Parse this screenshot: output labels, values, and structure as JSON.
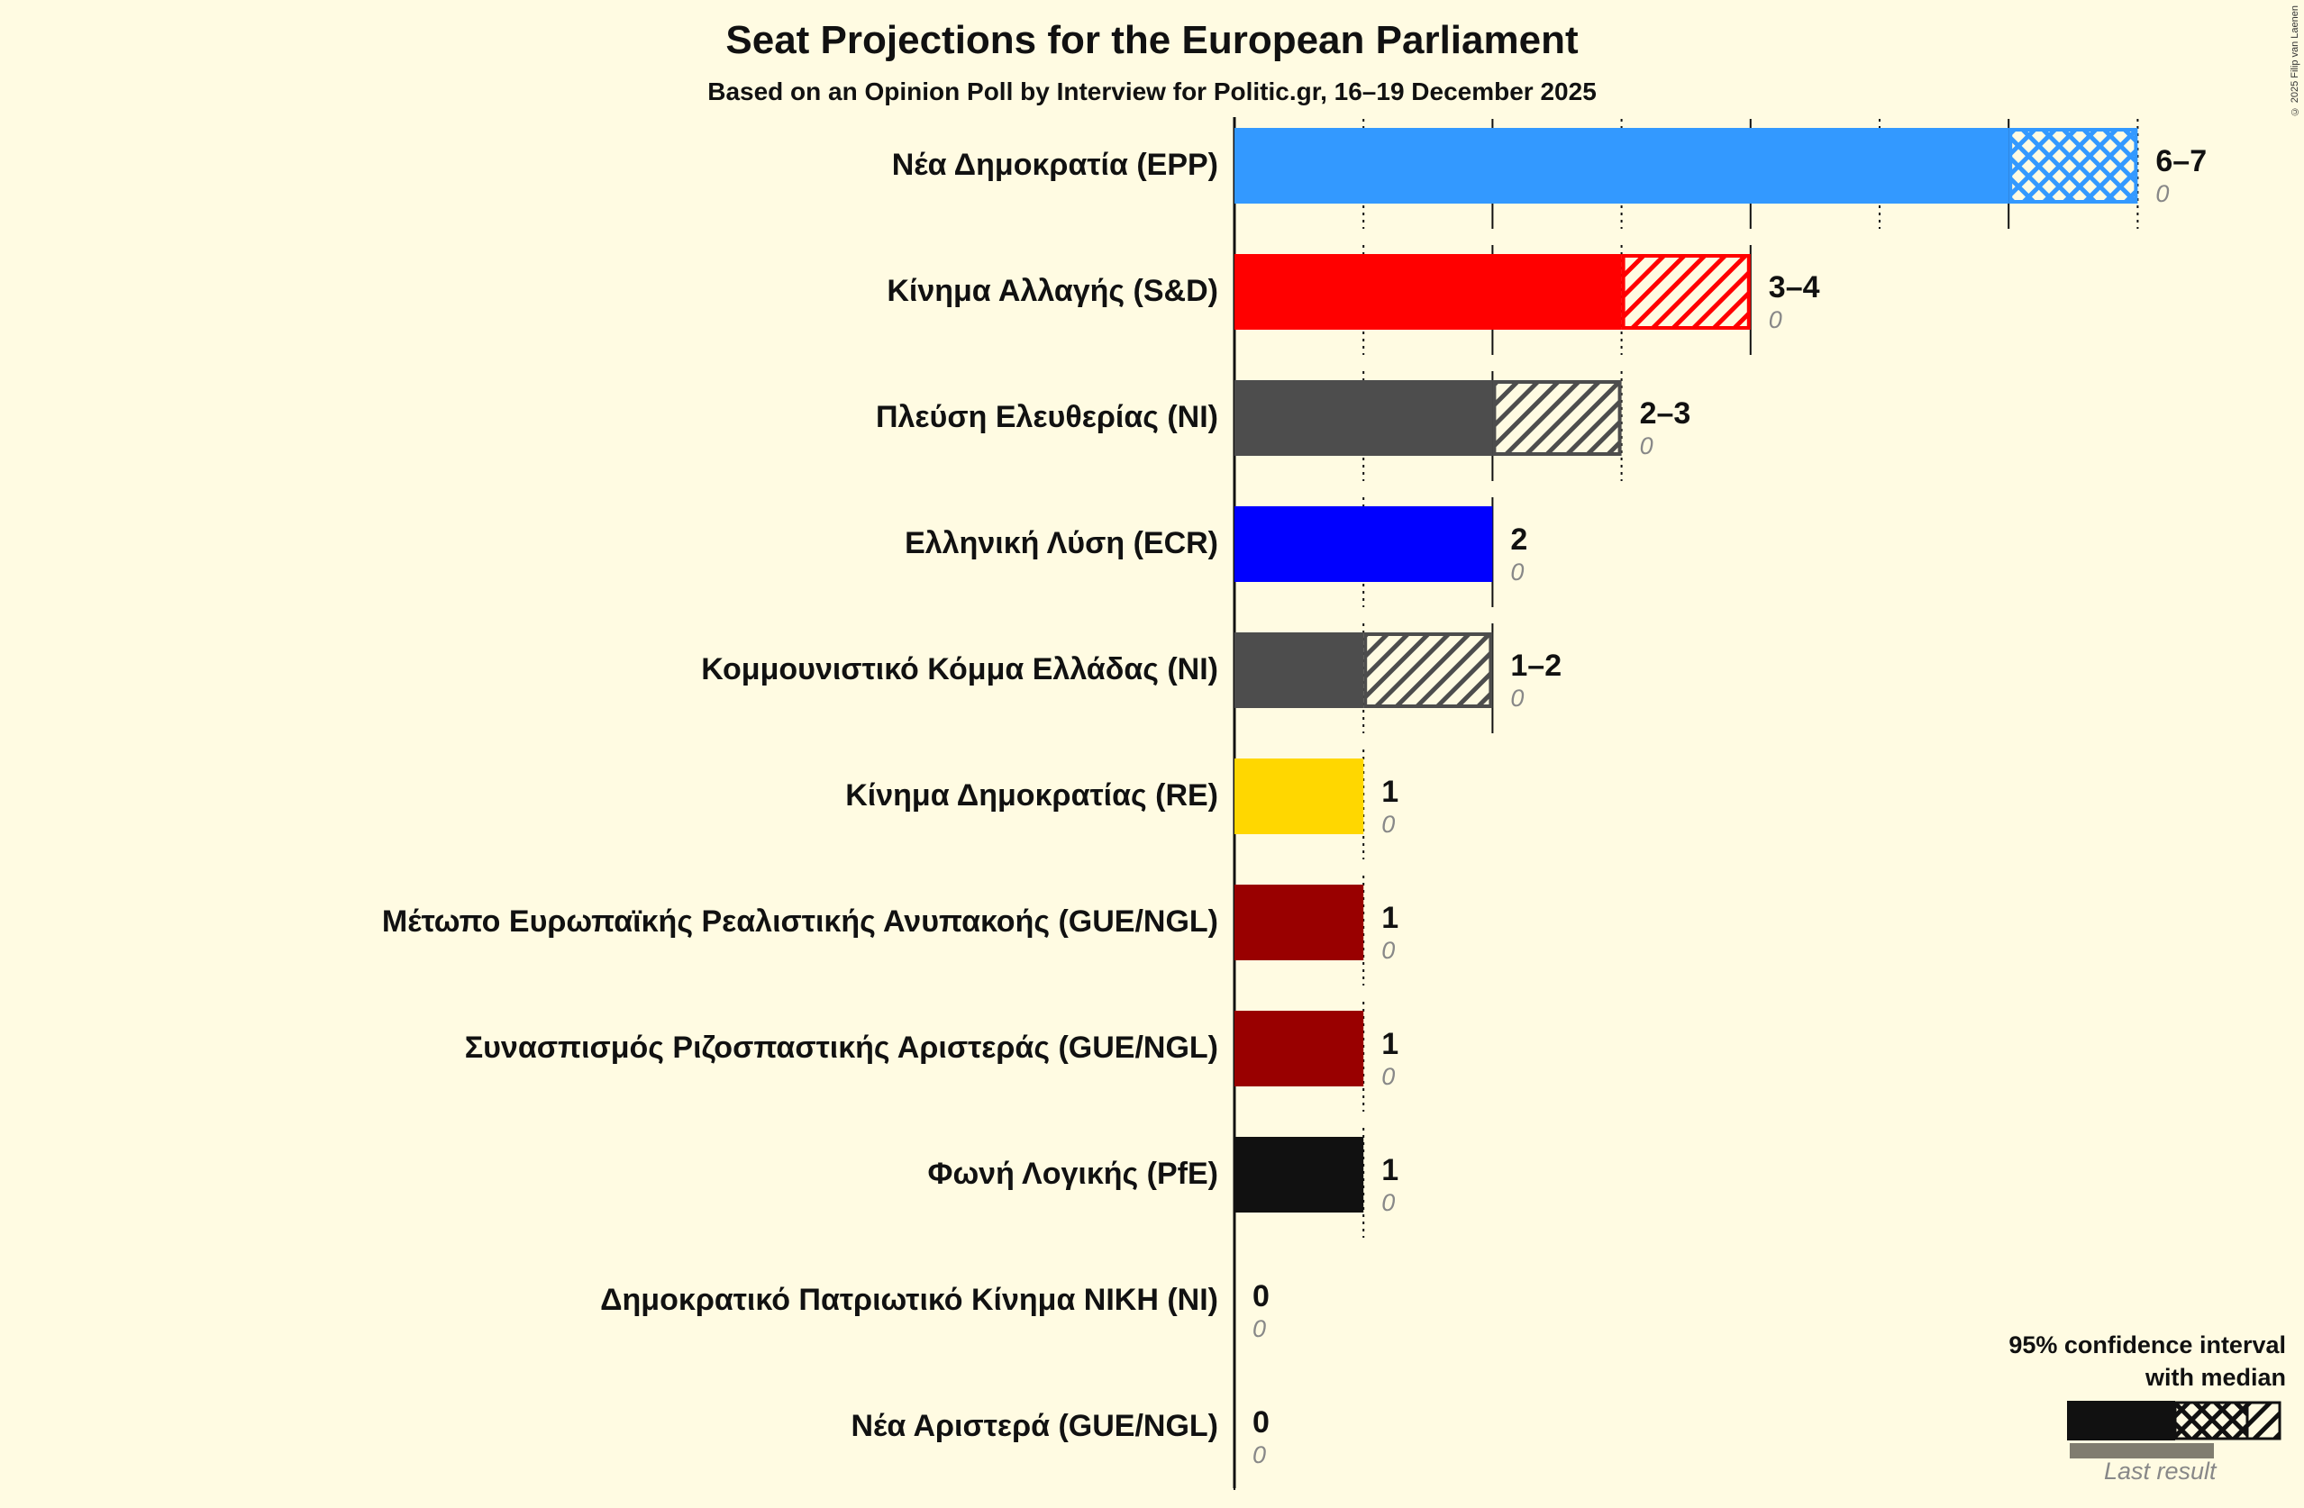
{
  "header": {
    "title": "Seat Projections for the European Parliament",
    "subtitle": "Based on an Opinion Poll by Interview for Politic.gr, 16–19 December 2025",
    "credit": "© 2025 Filip van Laenen"
  },
  "legend": {
    "title_line1": "95% confidence interval",
    "title_line2": "with median",
    "last_result": "Last result"
  },
  "parties": [
    {
      "name": "Νέα Δημοκρατία (EPP)",
      "range": "6–7",
      "last": "0",
      "low": 6,
      "high": 7,
      "median": 6,
      "color": "#3399ff"
    },
    {
      "name": "Κίνημα Αλλαγής (S&D)",
      "range": "3–4",
      "last": "0",
      "low": 3,
      "high": 4,
      "median": 3,
      "color": "#ff0000"
    },
    {
      "name": "Πλεύση Ελευθερίας (NI)",
      "range": "2–3",
      "last": "0",
      "low": 2,
      "high": 3,
      "median": 2,
      "color": "#4d4d4d"
    },
    {
      "name": "Ελληνική Λύση (ECR)",
      "range": "2",
      "last": "0",
      "low": 2,
      "high": 2,
      "median": 2,
      "color": "#0000ff"
    },
    {
      "name": "Κομμουνιστικό Κόμμα Ελλάδας (NI)",
      "range": "1–2",
      "last": "0",
      "low": 1,
      "high": 2,
      "median": 1,
      "color": "#4d4d4d"
    },
    {
      "name": "Κίνημα Δημοκρατίας (RE)",
      "range": "1",
      "last": "0",
      "low": 1,
      "high": 1,
      "median": 1,
      "color": "#ffd700"
    },
    {
      "name": "Μέτωπο Ευρωπαϊκής Ρεαλιστικής Ανυπακοής (GUE/NGL)",
      "range": "1",
      "last": "0",
      "low": 1,
      "high": 1,
      "median": 1,
      "color": "#990000"
    },
    {
      "name": "Συνασπισμός Ριζοσπαστικής Αριστεράς (GUE/NGL)",
      "range": "1",
      "last": "0",
      "low": 1,
      "high": 1,
      "median": 1,
      "color": "#990000"
    },
    {
      "name": "Φωνή Λογικής (PfE)",
      "range": "1",
      "last": "0",
      "low": 1,
      "high": 1,
      "median": 1,
      "color": "#111111"
    },
    {
      "name": "Δημοκρατικό Πατριωτικό Κίνημα ΝΙΚΗ (NI)",
      "range": "0",
      "last": "0",
      "low": 0,
      "high": 0,
      "median": 0,
      "color": "#111111"
    },
    {
      "name": "Νέα Αριστερά (GUE/NGL)",
      "range": "0",
      "last": "0",
      "low": 0,
      "high": 0,
      "median": 0,
      "color": "#990000"
    }
  ],
  "chart_data": {
    "type": "bar",
    "orientation": "horizontal",
    "title": "Seat Projections for the European Parliament",
    "subtitle": "Based on an Opinion Poll by Interview for Politic.gr, 16–19 December 2025",
    "categories": [
      "Νέα Δημοκρατία (EPP)",
      "Κίνημα Αλλαγής (S&D)",
      "Πλεύση Ελευθερίας (NI)",
      "Ελληνική Λύση (ECR)",
      "Κομμουνιστικό Κόμμα Ελλάδας (NI)",
      "Κίνημα Δημοκρατίας (RE)",
      "Μέτωπο Ευρωπαϊκής Ρεαλιστικής Ανυπακοής (GUE/NGL)",
      "Συνασπισμός Ριζοσπαστικής Αριστεράς (GUE/NGL)",
      "Φωνή Λογικής (PfE)",
      "Δημοκρατικό Πατριωτικό Κίνημα ΝΙΚΗ (NI)",
      "Νέα Αριστερά (GUE/NGL)"
    ],
    "series": [
      {
        "name": "CI low",
        "values": [
          6,
          3,
          2,
          2,
          1,
          1,
          1,
          1,
          1,
          0,
          0
        ]
      },
      {
        "name": "CI high",
        "values": [
          7,
          4,
          3,
          2,
          2,
          1,
          1,
          1,
          1,
          0,
          0
        ]
      },
      {
        "name": "Last result",
        "values": [
          0,
          0,
          0,
          0,
          0,
          0,
          0,
          0,
          0,
          0,
          0
        ]
      }
    ],
    "value_labels": [
      "6–7",
      "3–4",
      "2–3",
      "2",
      "1–2",
      "1",
      "1",
      "1",
      "1",
      "0",
      "0"
    ],
    "xlabel": "",
    "ylabel": "",
    "xlim": [
      0,
      7
    ],
    "grid": "vertical lines every seat (solid at even, dotted at odd)",
    "legend": [
      "95% confidence interval with median",
      "Last result"
    ],
    "legend_position": "bottom-right"
  }
}
